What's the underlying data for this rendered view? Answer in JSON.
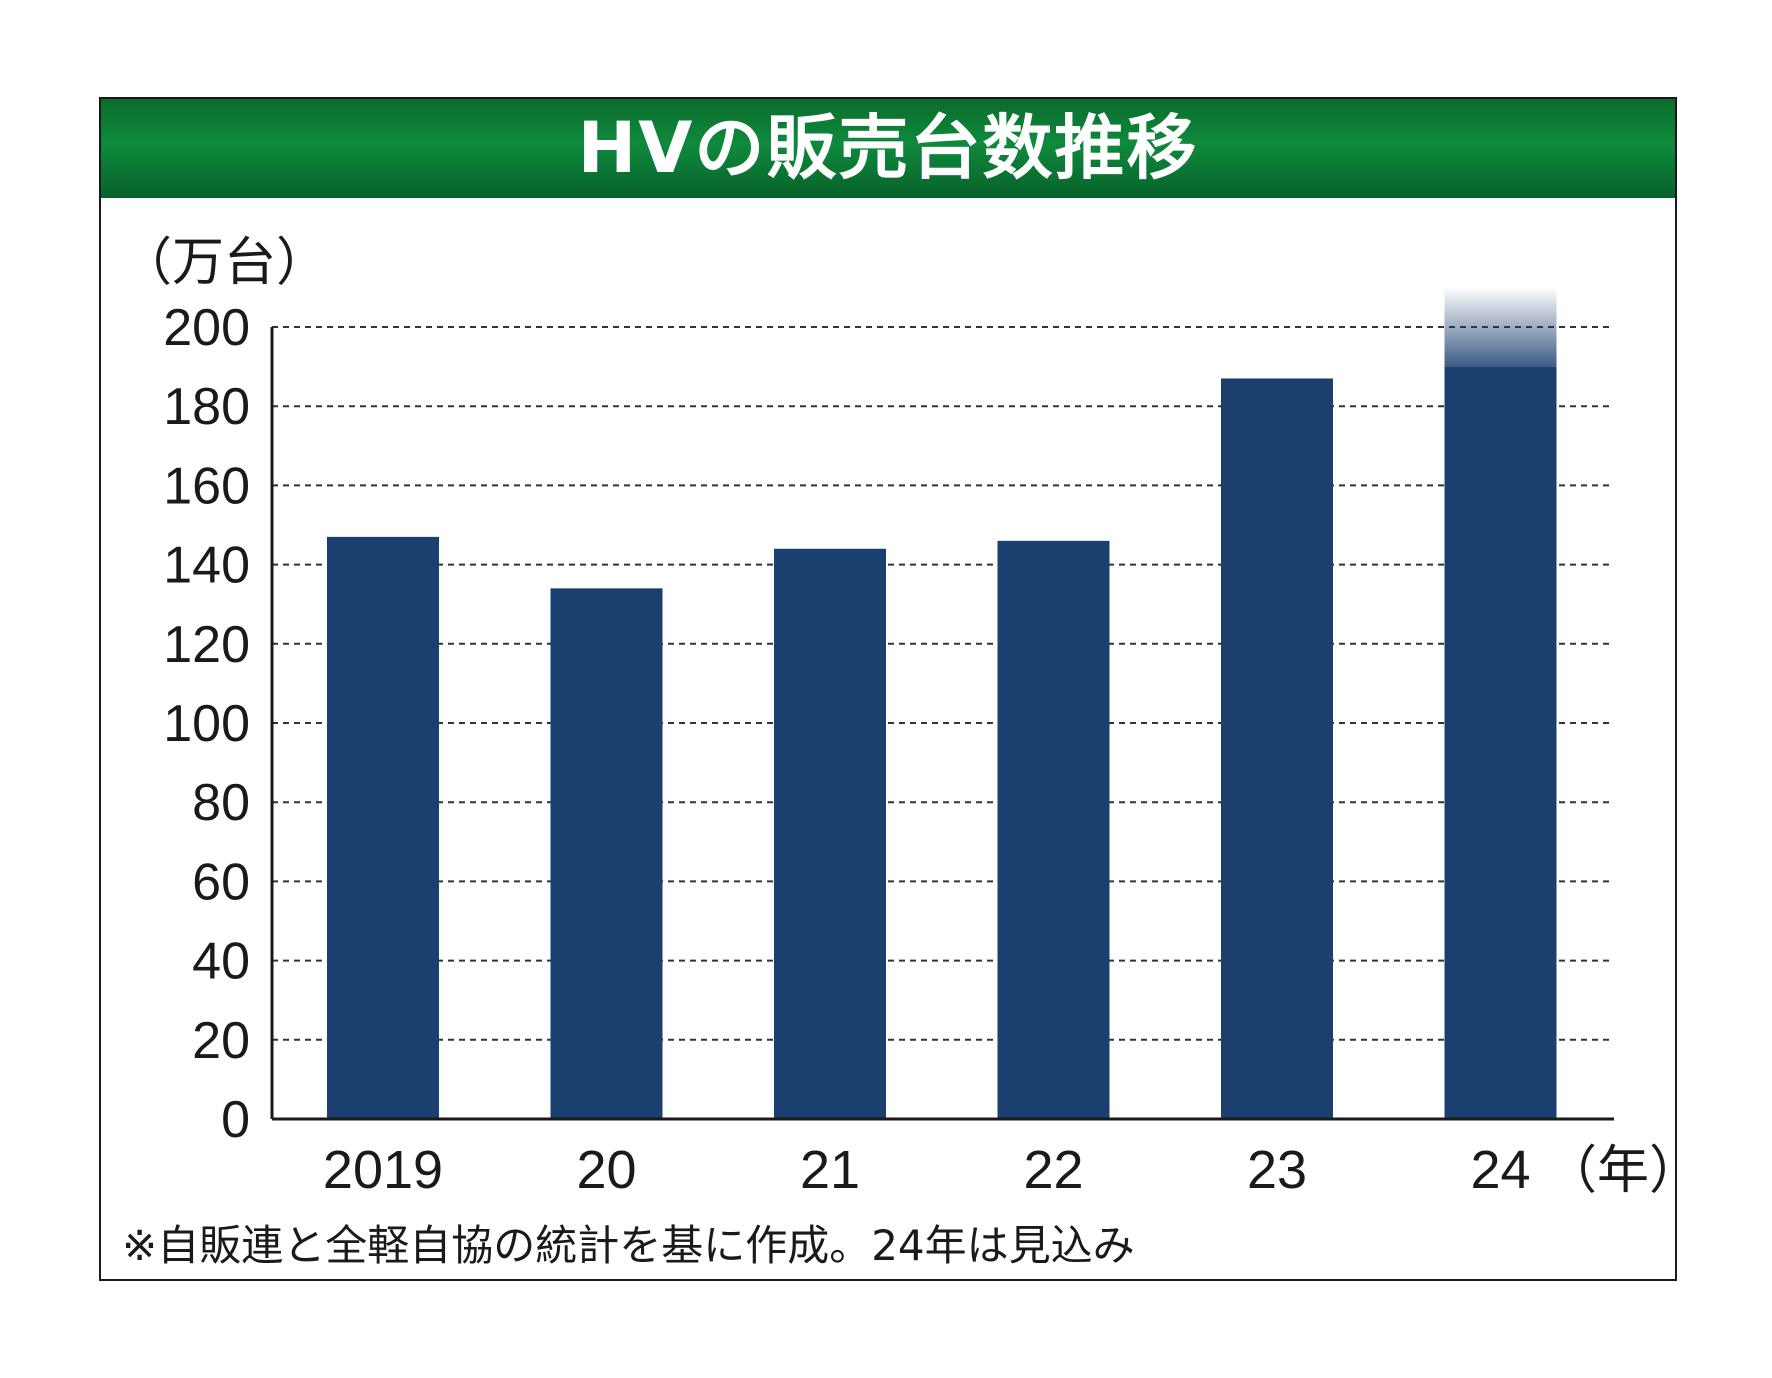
{
  "chart_data": {
    "type": "bar",
    "title": "HVの販売台数推移",
    "ylabel": "（万台）",
    "xlabel": "（年）",
    "categories": [
      "2019",
      "20",
      "21",
      "22",
      "23",
      "24"
    ],
    "values": [
      147,
      134,
      144,
      146,
      187,
      200
    ],
    "ylim": [
      0,
      200
    ],
    "yticks": [
      0,
      20,
      40,
      60,
      80,
      100,
      120,
      140,
      160,
      180,
      200
    ],
    "grid": true,
    "bar_color": "#1b3f6e",
    "note": "※自販連と全軽自協の統計を基に作成。24年は見込み"
  }
}
